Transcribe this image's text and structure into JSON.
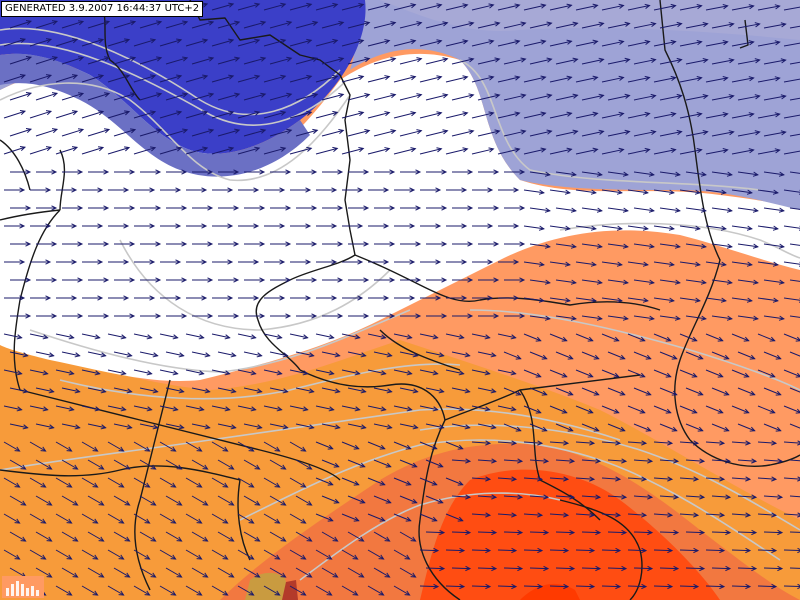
{
  "header": {
    "generated_stamp": "GENERATED 3.9.2007 16:44:37 UTC+2"
  },
  "map": {
    "field_colors": {
      "dark_blue": "#3b3fc8",
      "mid_blue": "#6b70c4",
      "light_blue": "#9ea3d6",
      "white": "#ffffff",
      "light_orange": "#ff9a62",
      "orange": "#f79b3a",
      "dark_orange": "#f27840",
      "red_orange": "#ff4d12",
      "brown": "#c99b40"
    },
    "contour_color": "#c8c8c8",
    "border_color": "#1a1a1a",
    "arrow_color": "#1a1a6a",
    "logo_icon": "station-logo-icon"
  }
}
